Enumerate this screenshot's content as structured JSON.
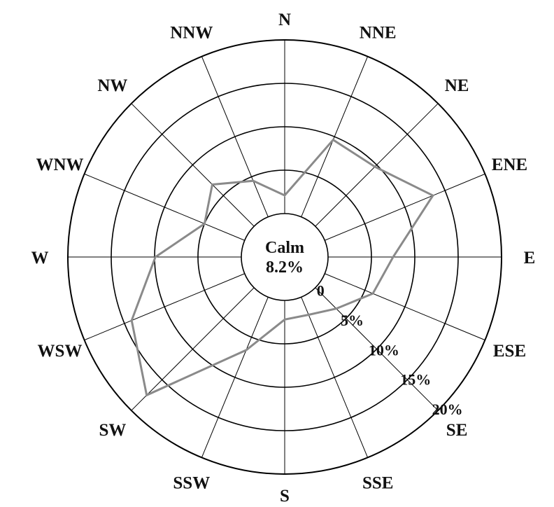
{
  "chart_data": {
    "type": "radar",
    "title": "",
    "directions": [
      "N",
      "NNE",
      "NE",
      "ENE",
      "E",
      "ESE",
      "SE",
      "SSE",
      "S",
      "SSW",
      "SW",
      "WSW",
      "W",
      "WNW",
      "NW",
      "NNW"
    ],
    "rings": [
      0,
      5,
      10,
      15,
      20
    ],
    "ring_labels": [
      "0",
      "5%",
      "10%",
      "15%",
      "20%"
    ],
    "calm": {
      "label": "Calm",
      "value": "8.2%"
    },
    "series": [
      {
        "values": [
          2.1,
          9.6,
          9.7,
          13.5,
          7.5,
          6.0,
          3.4,
          2.2,
          2.2,
          6.6,
          17.5,
          14.1,
          9.9,
          5.0,
          6.8,
          4.5
        ]
      }
    ],
    "grid": true,
    "colors": {
      "series": "#8a8a8a",
      "grid": "#000000",
      "text": "#111111"
    }
  }
}
